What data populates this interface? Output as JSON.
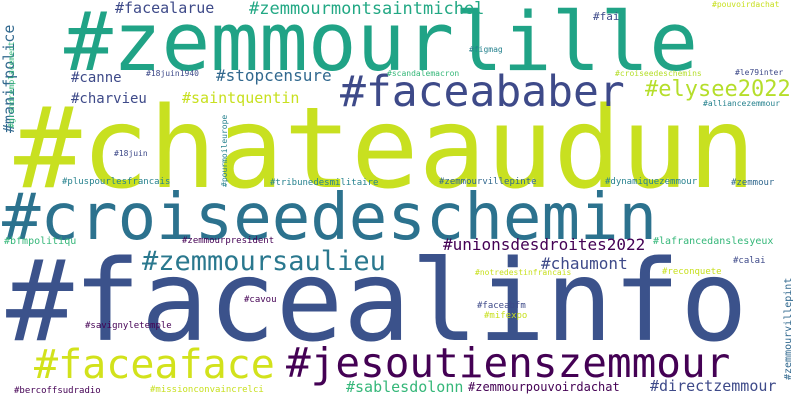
{
  "palette": {
    "background": "#ffffff",
    "dark_purple": "#440154",
    "indigo": "#3e4a89",
    "blue": "#31688e",
    "teal": "#26828e",
    "green_teal": "#1f9e89",
    "green": "#35b779",
    "light_green": "#6ece58",
    "yellow_green": "#b5de2b",
    "lime": "#c8e020"
  },
  "words": [
    {
      "text": "#chateaudun",
      "color": "#c8e020"
    },
    {
      "text": "#facealinfo",
      "color": "#3b528b"
    },
    {
      "text": "#croiseedeschemin",
      "color": "#2c728e"
    },
    {
      "text": "#zemmourlille",
      "color": "#20a386"
    },
    {
      "text": "#jesoutienszemmour",
      "color": "#440154"
    },
    {
      "text": "#faceababer",
      "color": "#3e4a89"
    },
    {
      "text": "#faceaface",
      "color": "#d2e21b"
    },
    {
      "text": "#zemmoursaulieu",
      "color": "#2a788e"
    },
    {
      "text": "#zemmourmontsaintmichel",
      "color": "#22a884"
    },
    {
      "text": "#elysee2022",
      "color": "#b5de2b"
    },
    {
      "text": "#unionsdesdroites2022",
      "color": "#440154"
    },
    {
      "text": "#chaumont",
      "color": "#3e4a89"
    },
    {
      "text": "#stopcensure",
      "color": "#31688e"
    },
    {
      "text": "#facealarue",
      "color": "#3e4a89"
    },
    {
      "text": "#saintquentin",
      "color": "#c8e020"
    },
    {
      "text": "#canne",
      "color": "#3e4a89"
    },
    {
      "text": "#charvieu",
      "color": "#3e4a89"
    },
    {
      "text": "#sablesdolonn",
      "color": "#35b779"
    },
    {
      "text": "#zemmourpouvoirdachat",
      "color": "#440154"
    },
    {
      "text": "#directzemmour",
      "color": "#3e4a89"
    },
    {
      "text": "#manifpolice",
      "color": "#31688e"
    },
    {
      "text": "#fai",
      "color": "#3e4a89"
    },
    {
      "text": "#pouvoirdachat",
      "color": "#c8e020"
    },
    {
      "text": "#figmag",
      "color": "#26828e"
    },
    {
      "text": "#18juin1940",
      "color": "#3e4a89"
    },
    {
      "text": "#scandalemacron",
      "color": "#35b779"
    },
    {
      "text": "#croiseedeschemins",
      "color": "#b5de2b"
    },
    {
      "text": "#le79inter",
      "color": "#3e4a89"
    },
    {
      "text": "#alliancezemmour",
      "color": "#26828e"
    },
    {
      "text": "#grandremplacement",
      "color": "#35b779"
    },
    {
      "text": "#18juin",
      "color": "#3e4a89"
    },
    {
      "text": "#pourmoileurope",
      "color": "#26828e"
    },
    {
      "text": "#pluspourlesfrancais",
      "color": "#26828e"
    },
    {
      "text": "#tribunedesmilitaire",
      "color": "#26828e"
    },
    {
      "text": "#zemmourvillepinte",
      "color": "#31688e"
    },
    {
      "text": "#dynamiquezemmour",
      "color": "#26828e"
    },
    {
      "text": "#zemmour",
      "color": "#31688e"
    },
    {
      "text": "#bfmpolitiqu",
      "color": "#35b779"
    },
    {
      "text": "#zemmourpresident",
      "color": "#440154"
    },
    {
      "text": "#lafrancedanslesyeux",
      "color": "#35b779"
    },
    {
      "text": "#calai",
      "color": "#3e4a89"
    },
    {
      "text": "#notredestinfrancais",
      "color": "#c8e020"
    },
    {
      "text": "#reconquete",
      "color": "#c8e020"
    },
    {
      "text": "#cavou",
      "color": "#440154"
    },
    {
      "text": "#faceabfm",
      "color": "#3e4a89"
    },
    {
      "text": "#mifexpo",
      "color": "#c8e020"
    },
    {
      "text": "#zemmourvillepint",
      "color": "#31688e"
    },
    {
      "text": "#savignyletemple",
      "color": "#440154"
    },
    {
      "text": "#bercoffsudradio",
      "color": "#440154"
    },
    {
      "text": "#missionconvaincrelci",
      "color": "#c8e020"
    }
  ]
}
